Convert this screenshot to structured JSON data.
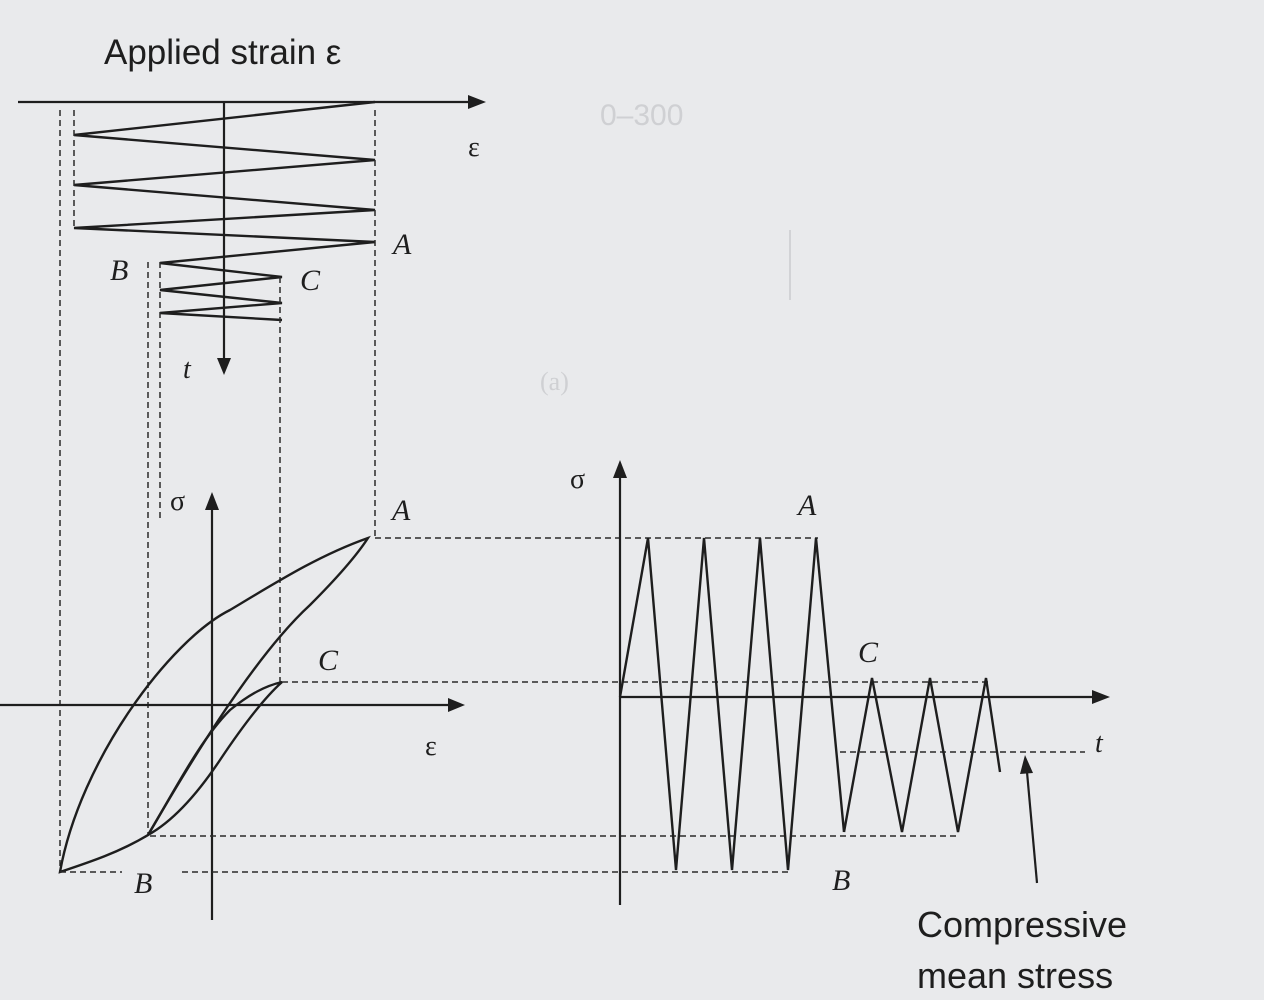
{
  "figure": {
    "strain_panel": {
      "title": "Applied strain ε",
      "axis_horizontal": "ε",
      "axis_vertical": "t",
      "label_a": "A",
      "label_b": "B",
      "label_c": "C"
    },
    "hysteresis_panel": {
      "axis_vertical": "σ",
      "axis_horizontal": "ε",
      "label_a": "A",
      "label_b": "B",
      "label_c": "C"
    },
    "stress_time_panel": {
      "axis_vertical": "σ",
      "axis_horizontal": "t",
      "label_a": "A",
      "label_b": "B",
      "label_c": "C",
      "annotation_line1": "Compressive",
      "annotation_line2": "mean stress"
    },
    "bleed_through": {
      "line1": "0–300",
      "line2": "(a)"
    }
  }
}
